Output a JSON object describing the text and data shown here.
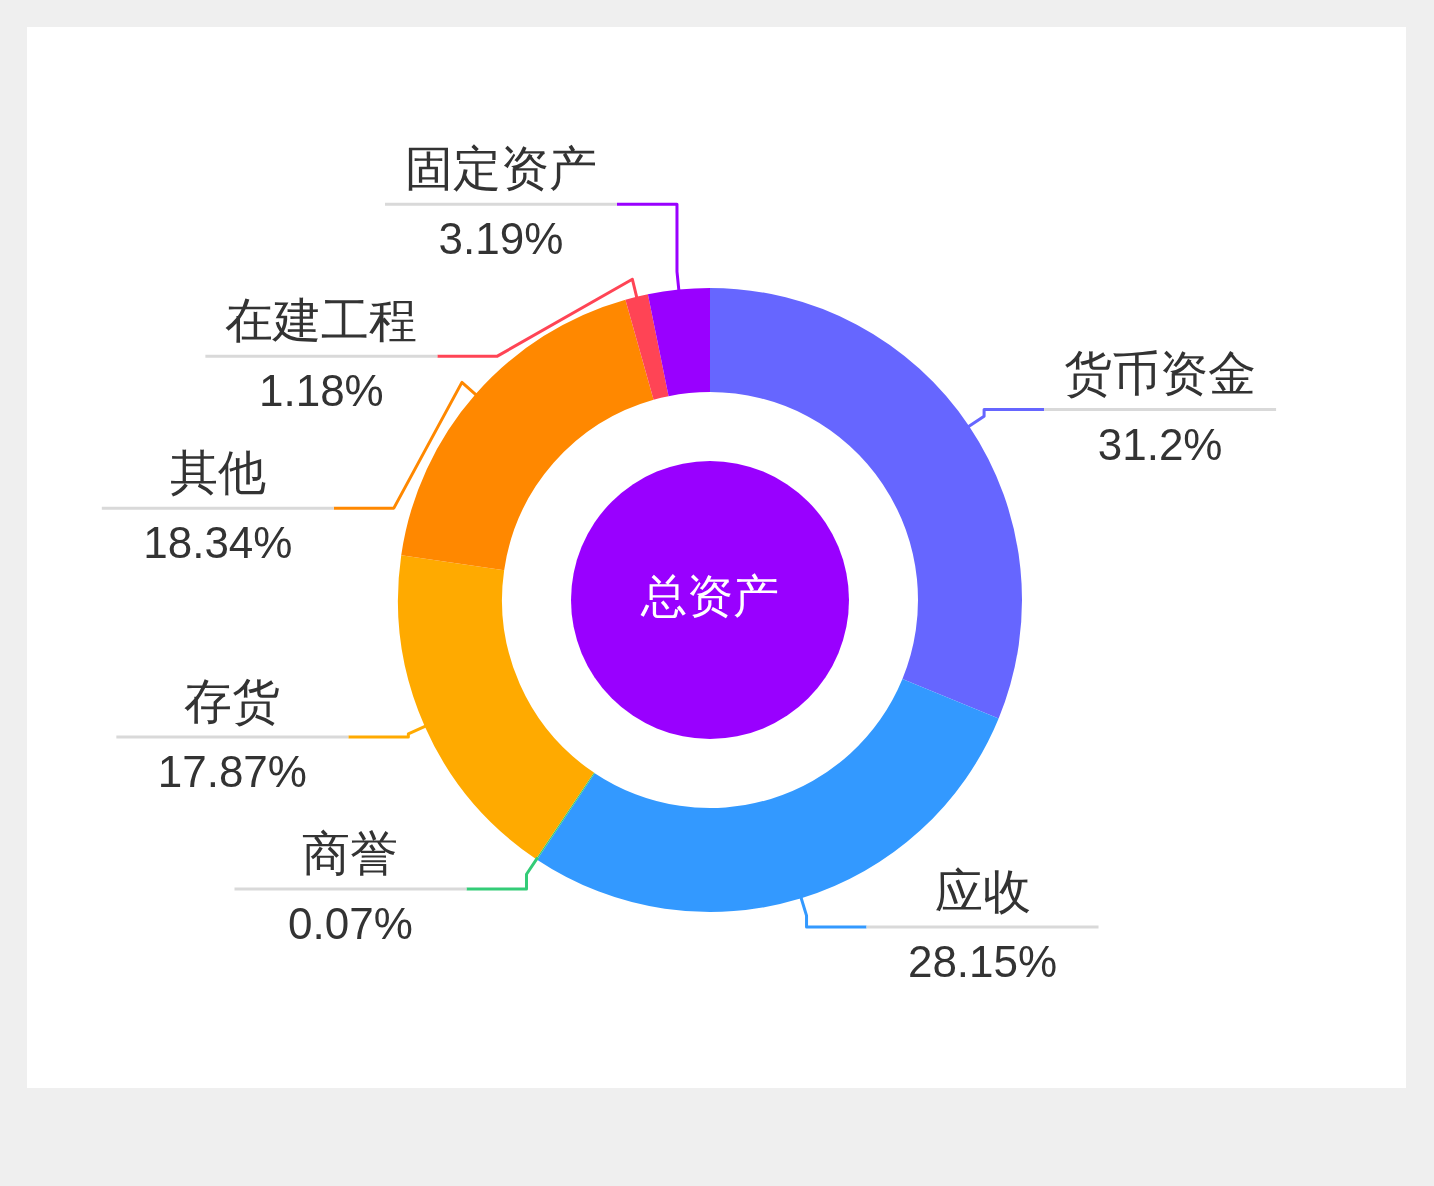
{
  "chart_data": {
    "type": "donut",
    "title": "总资产",
    "categories": [
      "货币资金",
      "应收",
      "商誉",
      "存货",
      "其他",
      "在建工程",
      "固定资产"
    ],
    "values": [
      31.2,
      28.15,
      0.07,
      17.87,
      18.34,
      1.18,
      3.19
    ],
    "value_labels": [
      "31.2%",
      "28.15%",
      "0.07%",
      "17.87%",
      "18.34%",
      "1.18%",
      "3.19%"
    ],
    "colors": [
      "#6666ff",
      "#3399ff",
      "#33cc77",
      "#ffaa00",
      "#ff8800",
      "#ff4455",
      "#9900ff"
    ]
  }
}
